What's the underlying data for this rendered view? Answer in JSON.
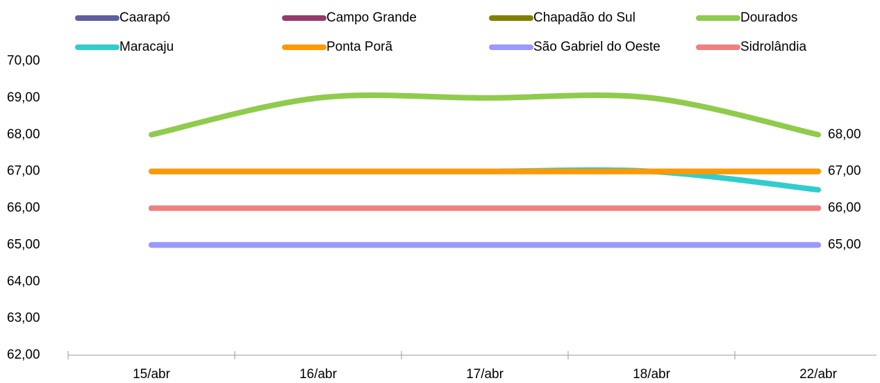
{
  "chart_data": {
    "type": "line",
    "categories": [
      "15/abr",
      "16/abr",
      "17/abr",
      "18/abr",
      "22/abr"
    ],
    "series": [
      {
        "name": "Caarapó",
        "color": "#5f5f9f",
        "values": [
          65,
          65,
          65,
          65,
          65
        ]
      },
      {
        "name": "Campo Grande",
        "color": "#953a6a",
        "values": [
          66,
          66,
          66,
          66,
          66
        ]
      },
      {
        "name": "Chapadão do Sul",
        "color": "#808000",
        "values": [
          67,
          67,
          67,
          67,
          67
        ]
      },
      {
        "name": "Dourados",
        "color": "#8fcb4d",
        "values": [
          68,
          69,
          69,
          69,
          68
        ],
        "value_labels": [
          null,
          null,
          null,
          null,
          "68,00"
        ]
      },
      {
        "name": "Maracaju",
        "color": "#33cccc",
        "values": [
          67,
          67,
          67,
          67,
          66.5
        ]
      },
      {
        "name": "Ponta Porã",
        "color": "#ff9900",
        "values": [
          67,
          67,
          67,
          67,
          67
        ],
        "value_labels": [
          null,
          null,
          null,
          null,
          "67,00"
        ]
      },
      {
        "name": "São Gabriel do Oeste",
        "color": "#9999ff",
        "values": [
          65,
          65,
          65,
          65,
          65
        ],
        "value_labels": [
          null,
          null,
          null,
          null,
          "65,00"
        ]
      },
      {
        "name": "Sidrolândia",
        "color": "#f08080",
        "values": [
          66,
          66,
          66,
          66,
          66
        ],
        "value_labels": [
          null,
          null,
          null,
          null,
          "66,00"
        ]
      }
    ],
    "ylim": [
      62,
      70
    ],
    "yticks": [
      {
        "value": 62,
        "label": "62,00"
      },
      {
        "value": 63,
        "label": "63,00"
      },
      {
        "value": 64,
        "label": "64,00"
      },
      {
        "value": 65,
        "label": "65,00"
      },
      {
        "value": 66,
        "label": "66,00"
      },
      {
        "value": 67,
        "label": "67,00"
      },
      {
        "value": 68,
        "label": "68,00"
      },
      {
        "value": 69,
        "label": "69,00"
      },
      {
        "value": 70,
        "label": "70,00"
      }
    ],
    "smooth": true
  }
}
